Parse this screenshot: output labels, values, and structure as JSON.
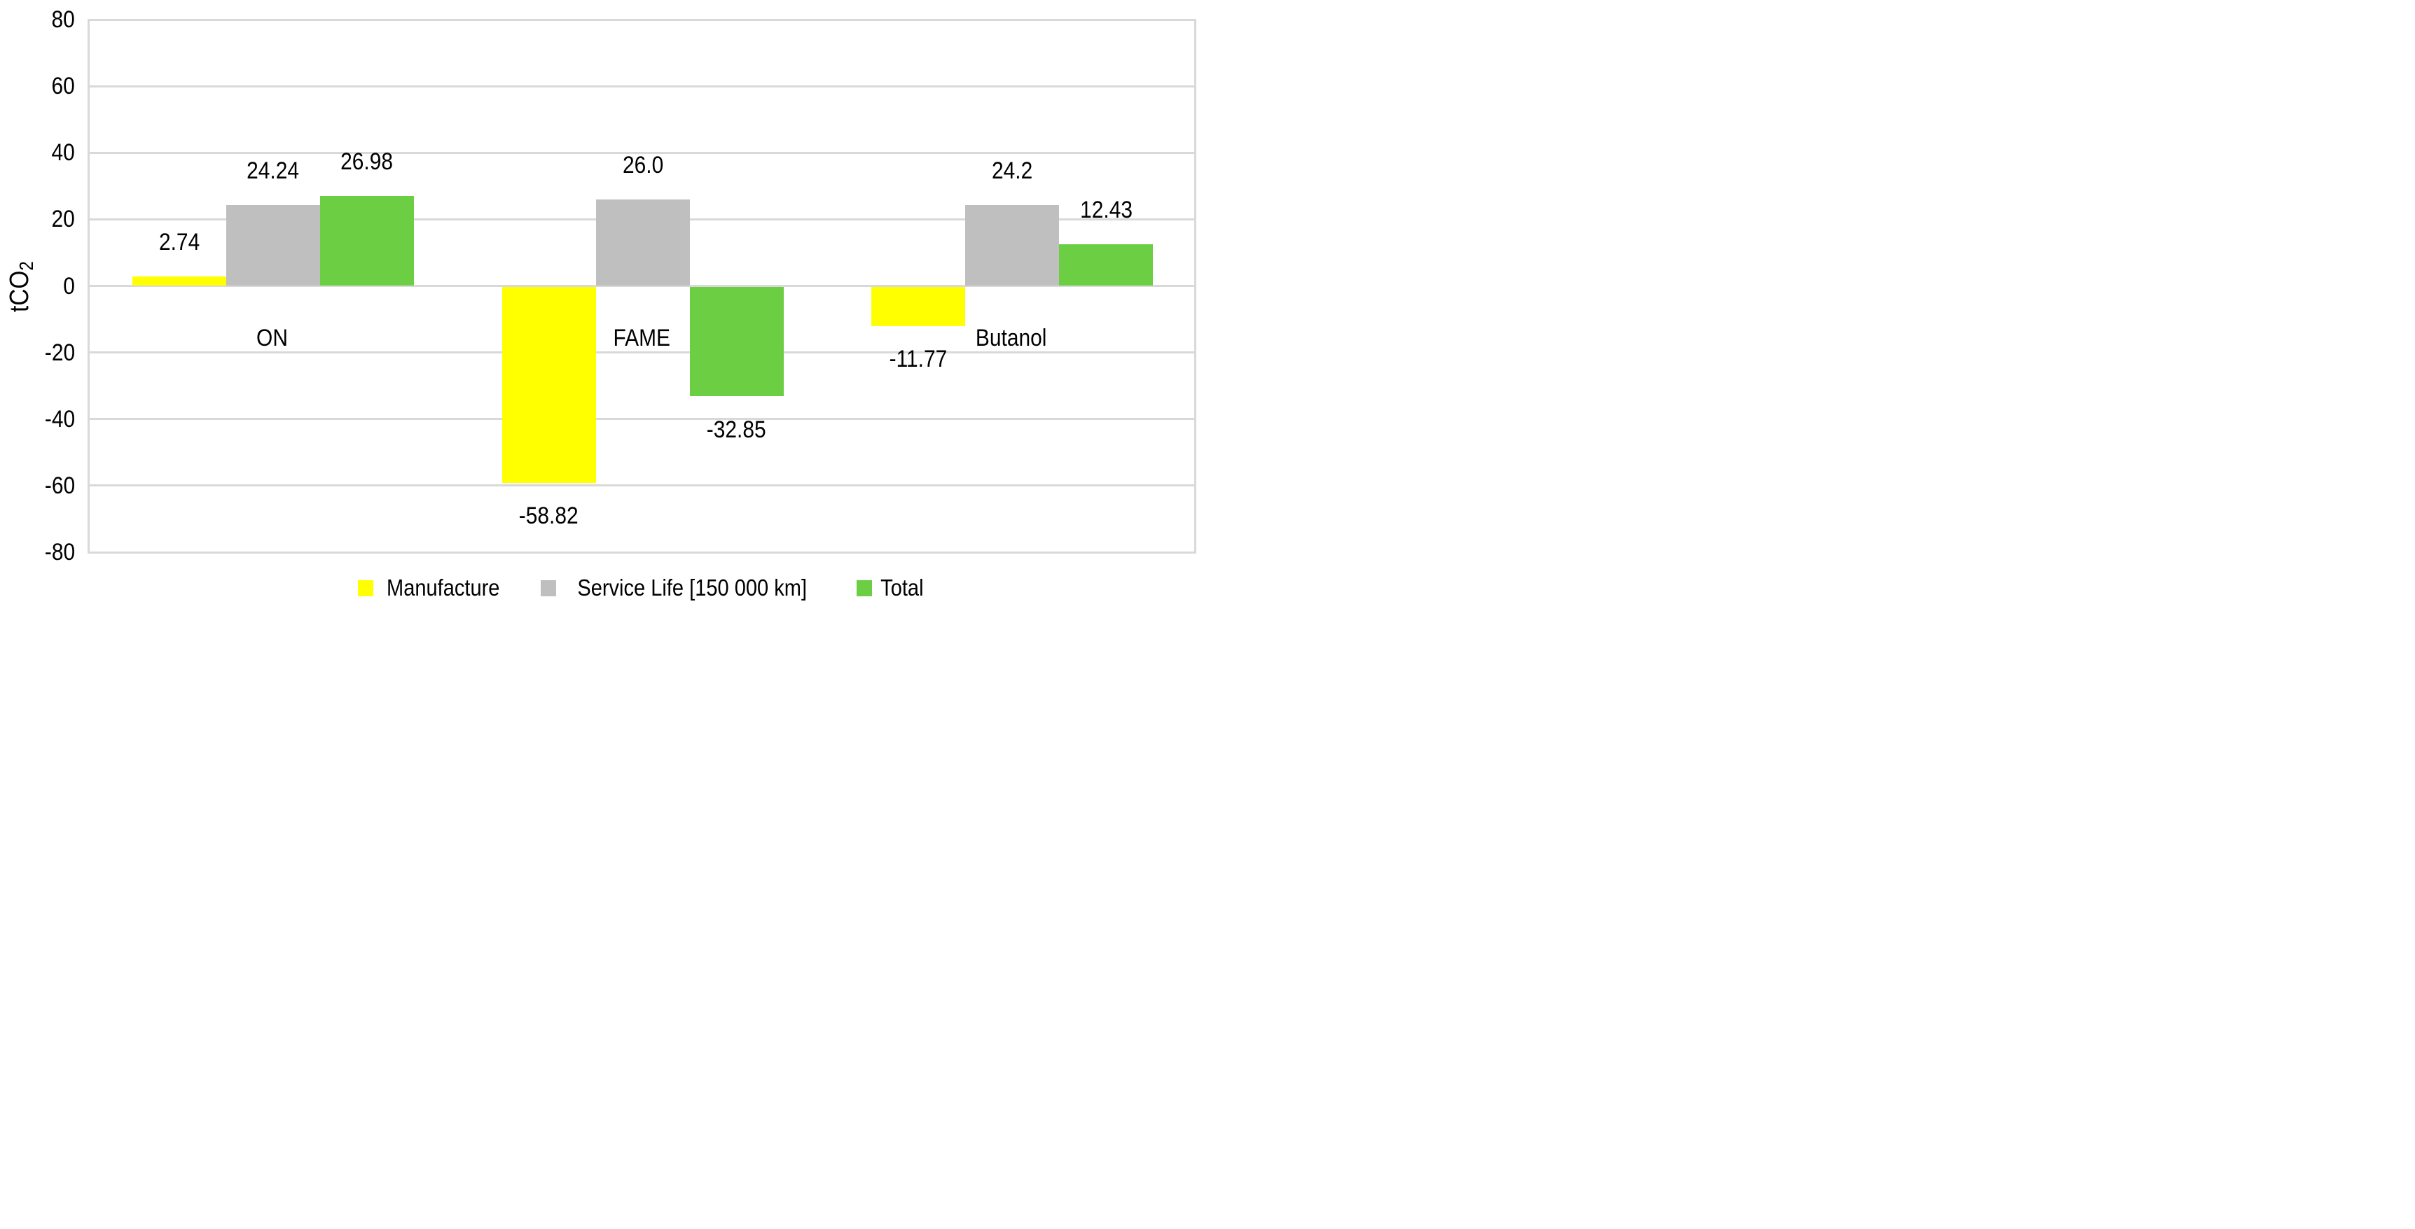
{
  "chart_data": {
    "type": "bar",
    "title": "",
    "xlabel": "",
    "ylabel": "tCO2",
    "y_axis_title": {
      "text": "tCO",
      "subscript": "2"
    },
    "categories": [
      "ON",
      "FAME",
      "Butanol"
    ],
    "series": [
      {
        "name": "Manufacture",
        "color": "#FFFF00",
        "values": [
          2.74,
          -58.82,
          -11.77
        ],
        "labels": [
          "2.74",
          "-58.82",
          "-11.77"
        ]
      },
      {
        "name": "Service Life [150 000 km]",
        "color": "#BFBFBF",
        "values": [
          24.24,
          26.0,
          24.2
        ],
        "labels": [
          "24.24",
          "26.0",
          "24.2"
        ]
      },
      {
        "name": "Total",
        "color": "#6CCE42",
        "values": [
          26.98,
          -32.85,
          12.43
        ],
        "labels": [
          "26.98",
          "-32.85",
          "12.43"
        ]
      }
    ],
    "y_axis": {
      "min": -80,
      "max": 80,
      "step": 20,
      "tick_labels": [
        "80",
        "60",
        "40",
        "20",
        "0",
        "-20",
        "-40",
        "-60",
        "-80"
      ]
    },
    "grid": true,
    "gridline_color": "#D9D9D9",
    "legend_position": "bottom",
    "data_label_position": "outside-end"
  }
}
